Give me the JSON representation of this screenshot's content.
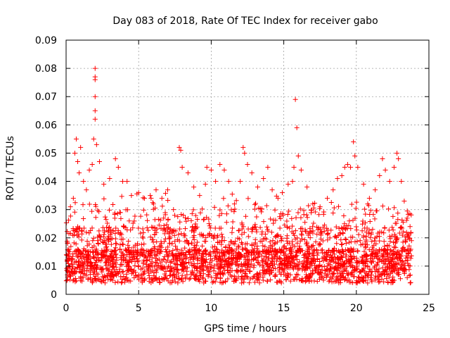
{
  "chart_data": {
    "type": "scatter",
    "title": "Day 083 of 2018, Rate Of TEC Index for receiver gabo",
    "xlabel": "GPS time / hours",
    "ylabel": "ROTI / TECUs",
    "xlim": [
      0,
      25
    ],
    "ylim": [
      0,
      0.09
    ],
    "xticks": [
      0,
      5,
      10,
      15,
      20,
      25
    ],
    "yticks": [
      0,
      0.01,
      0.02,
      0.03,
      0.04,
      0.05,
      0.06,
      0.07,
      0.08,
      0.09
    ],
    "xtick_labels": [
      "0",
      "5",
      "10",
      "15",
      "20",
      "25"
    ],
    "ytick_labels": [
      "0",
      "0.01",
      "0.02",
      "0.03",
      "0.04",
      "0.05",
      "0.06",
      "0.07",
      "0.08",
      "0.09"
    ],
    "grid": true,
    "legend": "none",
    "marker": "+",
    "data_x_range": [
      0,
      23.8
    ],
    "series": [
      {
        "color": "#ff0000",
        "points": [
          [
            0.1,
            0.018
          ],
          [
            0.3,
            0.031
          ],
          [
            0.5,
            0.034
          ],
          [
            0.6,
            0.05
          ],
          [
            0.7,
            0.055
          ],
          [
            0.8,
            0.047
          ],
          [
            0.9,
            0.043
          ],
          [
            1.0,
            0.052
          ],
          [
            1.2,
            0.04
          ],
          [
            1.4,
            0.037
          ],
          [
            1.6,
            0.044
          ],
          [
            1.8,
            0.046
          ],
          [
            1.9,
            0.055
          ],
          [
            2.0,
            0.08
          ],
          [
            2.0,
            0.077
          ],
          [
            2.0,
            0.076
          ],
          [
            2.0,
            0.07
          ],
          [
            2.0,
            0.065
          ],
          [
            2.0,
            0.062
          ],
          [
            2.1,
            0.053
          ],
          [
            2.3,
            0.047
          ],
          [
            2.6,
            0.039
          ],
          [
            3.0,
            0.041
          ],
          [
            3.4,
            0.048
          ],
          [
            3.6,
            0.045
          ],
          [
            3.9,
            0.04
          ],
          [
            4.2,
            0.04
          ],
          [
            4.5,
            0.035
          ],
          [
            5.0,
            0.036
          ],
          [
            5.4,
            0.034
          ],
          [
            5.8,
            0.035
          ],
          [
            6.2,
            0.037
          ],
          [
            6.6,
            0.034
          ],
          [
            7.0,
            0.037
          ],
          [
            7.4,
            0.03
          ],
          [
            7.8,
            0.052
          ],
          [
            7.9,
            0.051
          ],
          [
            8.0,
            0.045
          ],
          [
            8.4,
            0.043
          ],
          [
            8.8,
            0.038
          ],
          [
            9.2,
            0.035
          ],
          [
            9.6,
            0.039
          ],
          [
            9.7,
            0.045
          ],
          [
            10.0,
            0.044
          ],
          [
            10.3,
            0.04
          ],
          [
            10.6,
            0.046
          ],
          [
            10.9,
            0.044
          ],
          [
            11.2,
            0.04
          ],
          [
            11.6,
            0.032
          ],
          [
            12.0,
            0.04
          ],
          [
            12.2,
            0.052
          ],
          [
            12.3,
            0.05
          ],
          [
            12.5,
            0.046
          ],
          [
            12.8,
            0.043
          ],
          [
            13.2,
            0.038
          ],
          [
            13.6,
            0.041
          ],
          [
            13.9,
            0.045
          ],
          [
            14.2,
            0.037
          ],
          [
            14.6,
            0.034
          ],
          [
            14.9,
            0.036
          ],
          [
            15.3,
            0.039
          ],
          [
            15.6,
            0.04
          ],
          [
            15.7,
            0.045
          ],
          [
            15.8,
            0.069
          ],
          [
            15.9,
            0.059
          ],
          [
            16.0,
            0.049
          ],
          [
            16.2,
            0.044
          ],
          [
            16.6,
            0.038
          ],
          [
            17.0,
            0.032
          ],
          [
            17.5,
            0.031
          ],
          [
            18.0,
            0.034
          ],
          [
            18.4,
            0.037
          ],
          [
            18.7,
            0.041
          ],
          [
            19.0,
            0.042
          ],
          [
            19.2,
            0.045
          ],
          [
            19.4,
            0.046
          ],
          [
            19.6,
            0.045
          ],
          [
            19.8,
            0.054
          ],
          [
            19.9,
            0.049
          ],
          [
            20.1,
            0.045
          ],
          [
            20.5,
            0.039
          ],
          [
            20.9,
            0.034
          ],
          [
            21.3,
            0.037
          ],
          [
            21.6,
            0.042
          ],
          [
            21.8,
            0.048
          ],
          [
            22.0,
            0.044
          ],
          [
            22.3,
            0.04
          ],
          [
            22.6,
            0.045
          ],
          [
            22.8,
            0.05
          ],
          [
            22.9,
            0.048
          ],
          [
            23.1,
            0.04
          ],
          [
            23.3,
            0.033
          ],
          [
            23.5,
            0.027
          ],
          [
            23.7,
            0.024
          ],
          [
            23.8,
            0.019
          ]
        ]
      }
    ]
  }
}
